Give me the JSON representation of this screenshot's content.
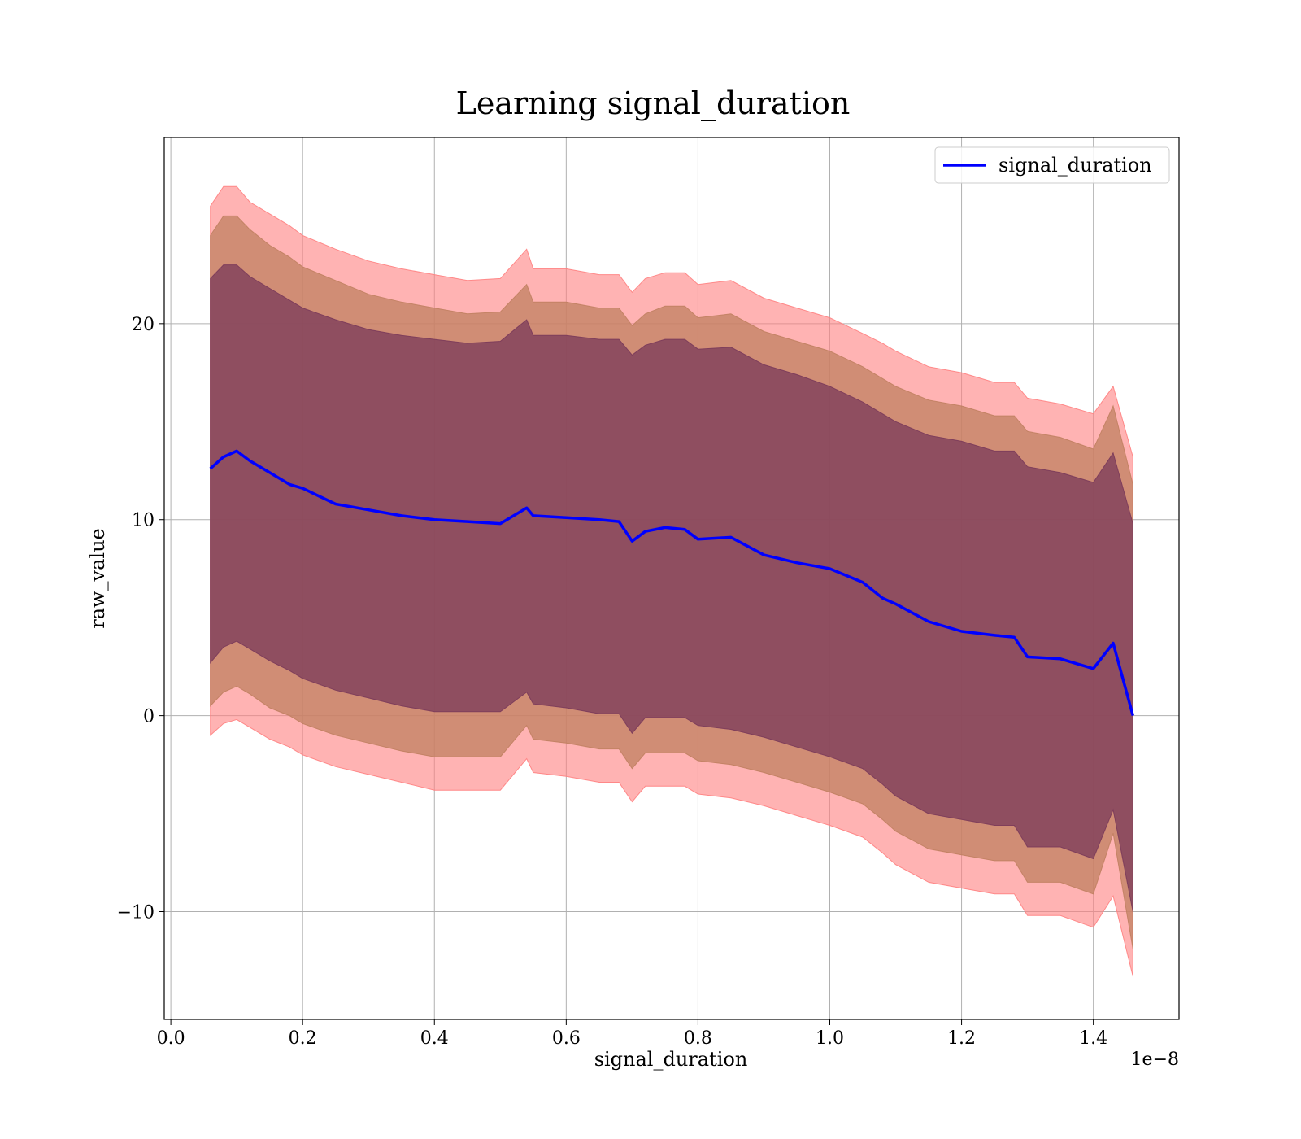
{
  "chart_data": {
    "type": "line",
    "title": "Learning signal_duration",
    "xlabel": "signal_duration",
    "ylabel": "raw_value",
    "x_offset_label": "1e−8",
    "xlim": [
      -0.01,
      1.53
    ],
    "ylim": [
      -15.5,
      29.5
    ],
    "x_ticks": [
      0.0,
      0.2,
      0.4,
      0.6,
      0.8,
      1.0,
      1.2,
      1.4
    ],
    "x_tick_labels": [
      "0.0",
      "0.2",
      "0.4",
      "0.6",
      "0.8",
      "1.0",
      "1.2",
      "1.4"
    ],
    "y_ticks": [
      -10,
      0,
      10,
      20
    ],
    "y_tick_labels": [
      "−10",
      "0",
      "10",
      "20"
    ],
    "grid": true,
    "legend": {
      "placement": "top-right",
      "entries": [
        "signal_duration"
      ]
    },
    "colors": {
      "line": "#0000ff",
      "band_outer": "#ff8080",
      "band_middle": "#c08060",
      "band_inner": "#7a3a5a"
    },
    "x": [
      0.06,
      0.08,
      0.1,
      0.12,
      0.15,
      0.18,
      0.2,
      0.25,
      0.3,
      0.35,
      0.4,
      0.45,
      0.5,
      0.54,
      0.55,
      0.6,
      0.65,
      0.68,
      0.7,
      0.72,
      0.75,
      0.78,
      0.8,
      0.85,
      0.9,
      0.95,
      1.0,
      1.05,
      1.08,
      1.1,
      1.15,
      1.2,
      1.25,
      1.28,
      1.3,
      1.35,
      1.4,
      1.43,
      1.46
    ],
    "series": [
      {
        "name": "signal_duration",
        "y": [
          12.6,
          13.2,
          13.5,
          13.0,
          12.4,
          11.8,
          11.6,
          10.8,
          10.5,
          10.2,
          10.0,
          9.9,
          9.8,
          10.6,
          10.2,
          10.1,
          10.0,
          9.9,
          8.9,
          9.4,
          9.6,
          9.5,
          9.0,
          9.1,
          8.2,
          7.8,
          7.5,
          6.8,
          6.0,
          5.7,
          4.8,
          4.3,
          4.1,
          4.0,
          3.0,
          2.9,
          2.4,
          3.7,
          0.0
        ]
      },
      {
        "name": "",
        "role": "band_outer",
        "upper": [
          26.0,
          27.0,
          27.0,
          26.2,
          25.6,
          25.0,
          24.5,
          23.8,
          23.2,
          22.8,
          22.5,
          22.2,
          22.3,
          23.8,
          22.8,
          22.8,
          22.5,
          22.5,
          21.6,
          22.3,
          22.6,
          22.6,
          22.0,
          22.2,
          21.3,
          20.8,
          20.3,
          19.5,
          19.0,
          18.6,
          17.8,
          17.5,
          17.0,
          17.0,
          16.2,
          15.9,
          15.4,
          16.8,
          13.2
        ],
        "lower": [
          -1.0,
          -0.4,
          -0.2,
          -0.6,
          -1.2,
          -1.6,
          -2.0,
          -2.6,
          -3.0,
          -3.4,
          -3.8,
          -3.8,
          -3.8,
          -2.2,
          -2.9,
          -3.1,
          -3.4,
          -3.4,
          -4.4,
          -3.6,
          -3.6,
          -3.6,
          -4.0,
          -4.2,
          -4.6,
          -5.1,
          -5.6,
          -6.2,
          -7.0,
          -7.6,
          -8.5,
          -8.8,
          -9.1,
          -9.1,
          -10.2,
          -10.2,
          -10.8,
          -9.2,
          -13.3
        ]
      },
      {
        "name": "",
        "role": "band_middle",
        "upper": [
          24.5,
          25.5,
          25.5,
          24.8,
          24.0,
          23.4,
          22.9,
          22.2,
          21.5,
          21.1,
          20.8,
          20.5,
          20.6,
          22.0,
          21.1,
          21.1,
          20.8,
          20.8,
          19.9,
          20.5,
          20.9,
          20.9,
          20.3,
          20.5,
          19.6,
          19.1,
          18.6,
          17.8,
          17.2,
          16.8,
          16.1,
          15.8,
          15.3,
          15.3,
          14.5,
          14.2,
          13.6,
          15.8,
          11.8
        ],
        "lower": [
          0.5,
          1.2,
          1.5,
          1.1,
          0.4,
          0.0,
          -0.4,
          -1.0,
          -1.4,
          -1.8,
          -2.1,
          -2.1,
          -2.1,
          -0.5,
          -1.2,
          -1.4,
          -1.7,
          -1.7,
          -2.7,
          -1.9,
          -1.9,
          -1.9,
          -2.3,
          -2.5,
          -2.9,
          -3.4,
          -3.9,
          -4.5,
          -5.3,
          -5.9,
          -6.8,
          -7.1,
          -7.4,
          -7.4,
          -8.5,
          -8.5,
          -9.1,
          -6.0,
          -11.9
        ]
      },
      {
        "name": "",
        "role": "band_inner",
        "upper": [
          22.3,
          23.0,
          23.0,
          22.4,
          21.8,
          21.2,
          20.8,
          20.2,
          19.7,
          19.4,
          19.2,
          19.0,
          19.1,
          20.2,
          19.4,
          19.4,
          19.2,
          19.2,
          18.4,
          18.9,
          19.2,
          19.2,
          18.7,
          18.8,
          17.9,
          17.4,
          16.8,
          16.0,
          15.4,
          15.0,
          14.3,
          14.0,
          13.5,
          13.5,
          12.7,
          12.4,
          11.9,
          13.4,
          9.8
        ],
        "lower": [
          2.7,
          3.5,
          3.8,
          3.4,
          2.8,
          2.3,
          1.9,
          1.3,
          0.9,
          0.5,
          0.2,
          0.2,
          0.2,
          1.2,
          0.6,
          0.4,
          0.1,
          0.1,
          -0.9,
          -0.1,
          -0.1,
          -0.1,
          -0.5,
          -0.7,
          -1.1,
          -1.6,
          -2.1,
          -2.7,
          -3.5,
          -4.1,
          -5.0,
          -5.3,
          -5.6,
          -5.6,
          -6.7,
          -6.7,
          -7.3,
          -4.8,
          -10.0
        ]
      }
    ]
  }
}
